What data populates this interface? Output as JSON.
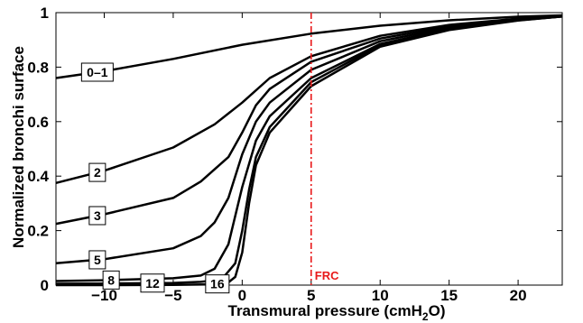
{
  "chart_data": {
    "type": "line",
    "xlabel": "Transmural pressure (cmH2O)",
    "ylabel": "Normalized bronchi surface",
    "xlim": [
      -13.5,
      23.2
    ],
    "ylim": [
      0,
      1
    ],
    "x_ticks": [
      -10,
      -5,
      0,
      5,
      10,
      15,
      20
    ],
    "y_ticks": [
      0,
      0.2,
      0.4,
      0.6,
      0.8,
      1
    ],
    "x_tick_labels": [
      "−10",
      "−5",
      "0",
      "5",
      "10",
      "15",
      "20"
    ],
    "y_tick_labels": [
      "0",
      "0.2",
      "0.4",
      "0.6",
      "0.8",
      "1"
    ],
    "grid": false,
    "reference_line": {
      "x": 5,
      "label": "FRC",
      "color": "#e8191a",
      "style": "dash-dot"
    },
    "line_color": "#000000",
    "series": [
      {
        "name": "0–1",
        "label_at": -10.5,
        "points": [
          [
            -13.5,
            0.76
          ],
          [
            -10,
            0.785
          ],
          [
            -5,
            0.83
          ],
          [
            0,
            0.882
          ],
          [
            5,
            0.923
          ],
          [
            10,
            0.952
          ],
          [
            15,
            0.972
          ],
          [
            20,
            0.985
          ],
          [
            23.2,
            0.99
          ]
        ]
      },
      {
        "name": "2",
        "label_at": -10.5,
        "points": [
          [
            -13.5,
            0.375
          ],
          [
            -10,
            0.42
          ],
          [
            -5,
            0.505
          ],
          [
            -2,
            0.59
          ],
          [
            0,
            0.67
          ],
          [
            2,
            0.76
          ],
          [
            5,
            0.84
          ],
          [
            10,
            0.915
          ],
          [
            15,
            0.955
          ],
          [
            20,
            0.978
          ],
          [
            23.2,
            0.988
          ]
        ]
      },
      {
        "name": "3",
        "label_at": -10.5,
        "points": [
          [
            -13.5,
            0.225
          ],
          [
            -10,
            0.26
          ],
          [
            -5,
            0.32
          ],
          [
            -3,
            0.38
          ],
          [
            -1,
            0.47
          ],
          [
            0,
            0.56
          ],
          [
            1,
            0.66
          ],
          [
            2,
            0.72
          ],
          [
            5,
            0.82
          ],
          [
            10,
            0.905
          ],
          [
            15,
            0.95
          ],
          [
            20,
            0.977
          ],
          [
            23.2,
            0.988
          ]
        ]
      },
      {
        "name": "5",
        "label_at": -10.5,
        "points": [
          [
            -13.5,
            0.08
          ],
          [
            -10,
            0.095
          ],
          [
            -5,
            0.135
          ],
          [
            -3,
            0.18
          ],
          [
            -2,
            0.23
          ],
          [
            -1,
            0.32
          ],
          [
            0,
            0.48
          ],
          [
            1,
            0.6
          ],
          [
            2,
            0.67
          ],
          [
            5,
            0.79
          ],
          [
            10,
            0.895
          ],
          [
            15,
            0.945
          ],
          [
            20,
            0.975
          ],
          [
            23.2,
            0.987
          ]
        ]
      },
      {
        "name": "8",
        "label_at": -9.5,
        "points": [
          [
            -13.5,
            0.015
          ],
          [
            -10,
            0.018
          ],
          [
            -5,
            0.025
          ],
          [
            -3,
            0.035
          ],
          [
            -2,
            0.06
          ],
          [
            -1,
            0.15
          ],
          [
            0,
            0.36
          ],
          [
            1,
            0.53
          ],
          [
            2,
            0.62
          ],
          [
            5,
            0.76
          ],
          [
            10,
            0.885
          ],
          [
            15,
            0.94
          ],
          [
            20,
            0.973
          ],
          [
            23.2,
            0.986
          ]
        ]
      },
      {
        "name": "12",
        "label_at": -6.5,
        "points": [
          [
            -13.5,
            0.005
          ],
          [
            -10,
            0.006
          ],
          [
            -5,
            0.008
          ],
          [
            -3,
            0.012
          ],
          [
            -1.5,
            0.02
          ],
          [
            -0.5,
            0.08
          ],
          [
            0,
            0.2
          ],
          [
            0.5,
            0.35
          ],
          [
            1,
            0.47
          ],
          [
            2,
            0.58
          ],
          [
            5,
            0.745
          ],
          [
            10,
            0.88
          ],
          [
            15,
            0.938
          ],
          [
            20,
            0.972
          ],
          [
            23.2,
            0.986
          ]
        ]
      },
      {
        "name": "16",
        "label_at": -1.8,
        "points": [
          [
            -13.5,
            0.0
          ],
          [
            -10,
            0.0
          ],
          [
            -5,
            0.001
          ],
          [
            -2,
            0.003
          ],
          [
            -1,
            0.01
          ],
          [
            -0.5,
            0.03
          ],
          [
            0,
            0.12
          ],
          [
            0.5,
            0.3
          ],
          [
            1,
            0.44
          ],
          [
            2,
            0.56
          ],
          [
            5,
            0.73
          ],
          [
            10,
            0.875
          ],
          [
            15,
            0.936
          ],
          [
            20,
            0.971
          ],
          [
            23.2,
            0.986
          ]
        ]
      }
    ]
  }
}
